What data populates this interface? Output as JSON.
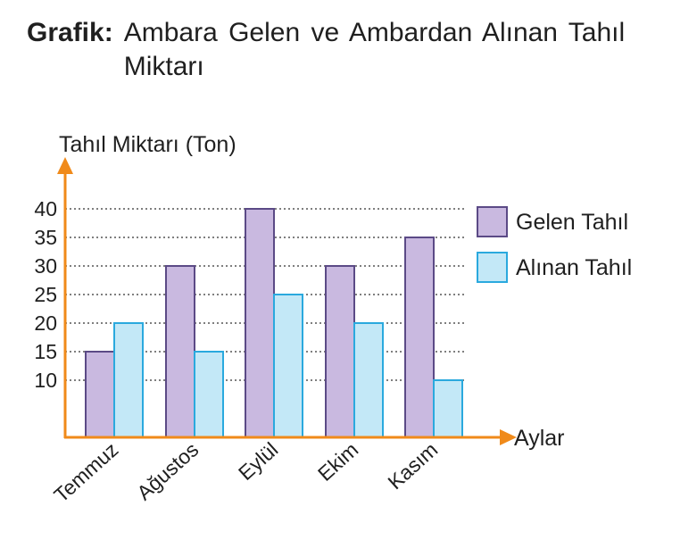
{
  "title": {
    "prefix": "Grafik:",
    "text": "Ambara Gelen ve Ambardan Alınan Tahıl Miktarı"
  },
  "chart_data": {
    "type": "bar",
    "title": "Ambara Gelen ve Ambardan Alınan Tahıl Miktarı",
    "xlabel": "Aylar",
    "ylabel": "Tahıl Miktarı (Ton)",
    "categories": [
      "Temmuz",
      "Ağustos",
      "Eylül",
      "Ekim",
      "Kasım"
    ],
    "series": [
      {
        "name": "Gelen Tahıl",
        "values": [
          15,
          30,
          40,
          30,
          35
        ],
        "color": "#c9b9e0"
      },
      {
        "name": "Alınan Tahıl",
        "values": [
          20,
          15,
          25,
          20,
          10
        ],
        "color": "#c3e8f7"
      }
    ],
    "yticks": [
      10,
      15,
      20,
      25,
      30,
      35,
      40
    ],
    "ylim": [
      0,
      40
    ],
    "grid": "dotted horizontal lines at tick values",
    "legend_position": "right",
    "axis_color": "#f08a1a",
    "bar_stroke_colors": [
      "#5b4a86",
      "#2aa9de"
    ]
  }
}
